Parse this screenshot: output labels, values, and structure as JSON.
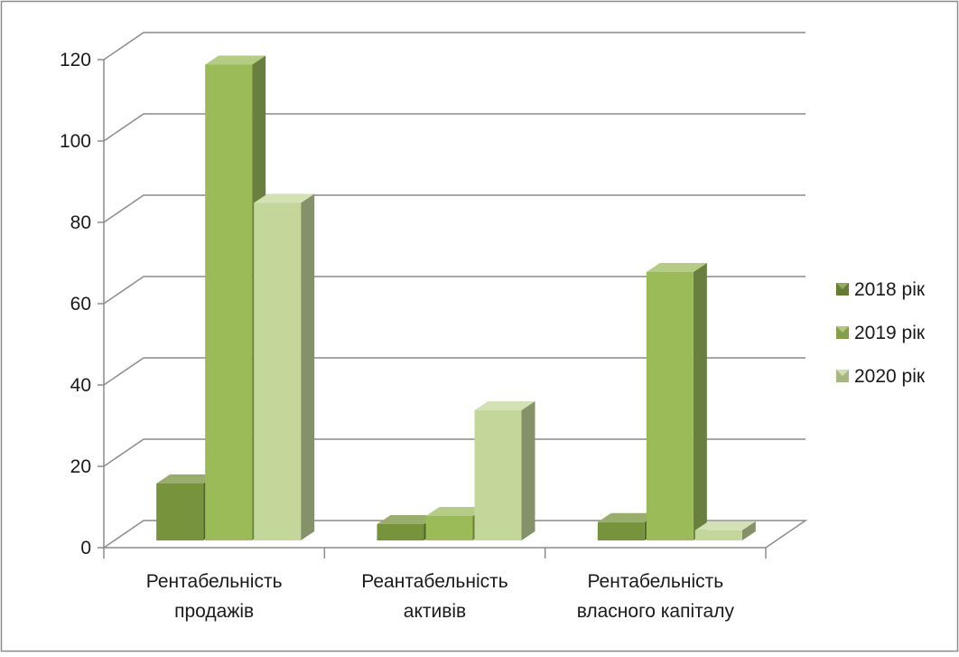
{
  "chart_data": {
    "type": "bar",
    "style": "3d-clustered-column",
    "categories": [
      [
        "Рентабельність",
        "продажів"
      ],
      [
        "Реантабельність",
        "активів"
      ],
      [
        "Рентабельність",
        "власного капіталу"
      ]
    ],
    "series": [
      {
        "name": "2018 рік",
        "values": [
          14,
          4,
          4.5
        ],
        "color": "#77933c"
      },
      {
        "name": "2019 рік",
        "values": [
          117,
          6,
          66
        ],
        "color": "#9bbb59"
      },
      {
        "name": "2020 рік",
        "values": [
          83,
          32,
          2.5
        ],
        "color": "#c4d79b"
      }
    ],
    "y_ticks": [
      "0",
      "20",
      "40",
      "60",
      "80",
      "100",
      "120"
    ],
    "ylim": [
      0,
      120
    ],
    "grid": true,
    "legend_position": "right"
  }
}
